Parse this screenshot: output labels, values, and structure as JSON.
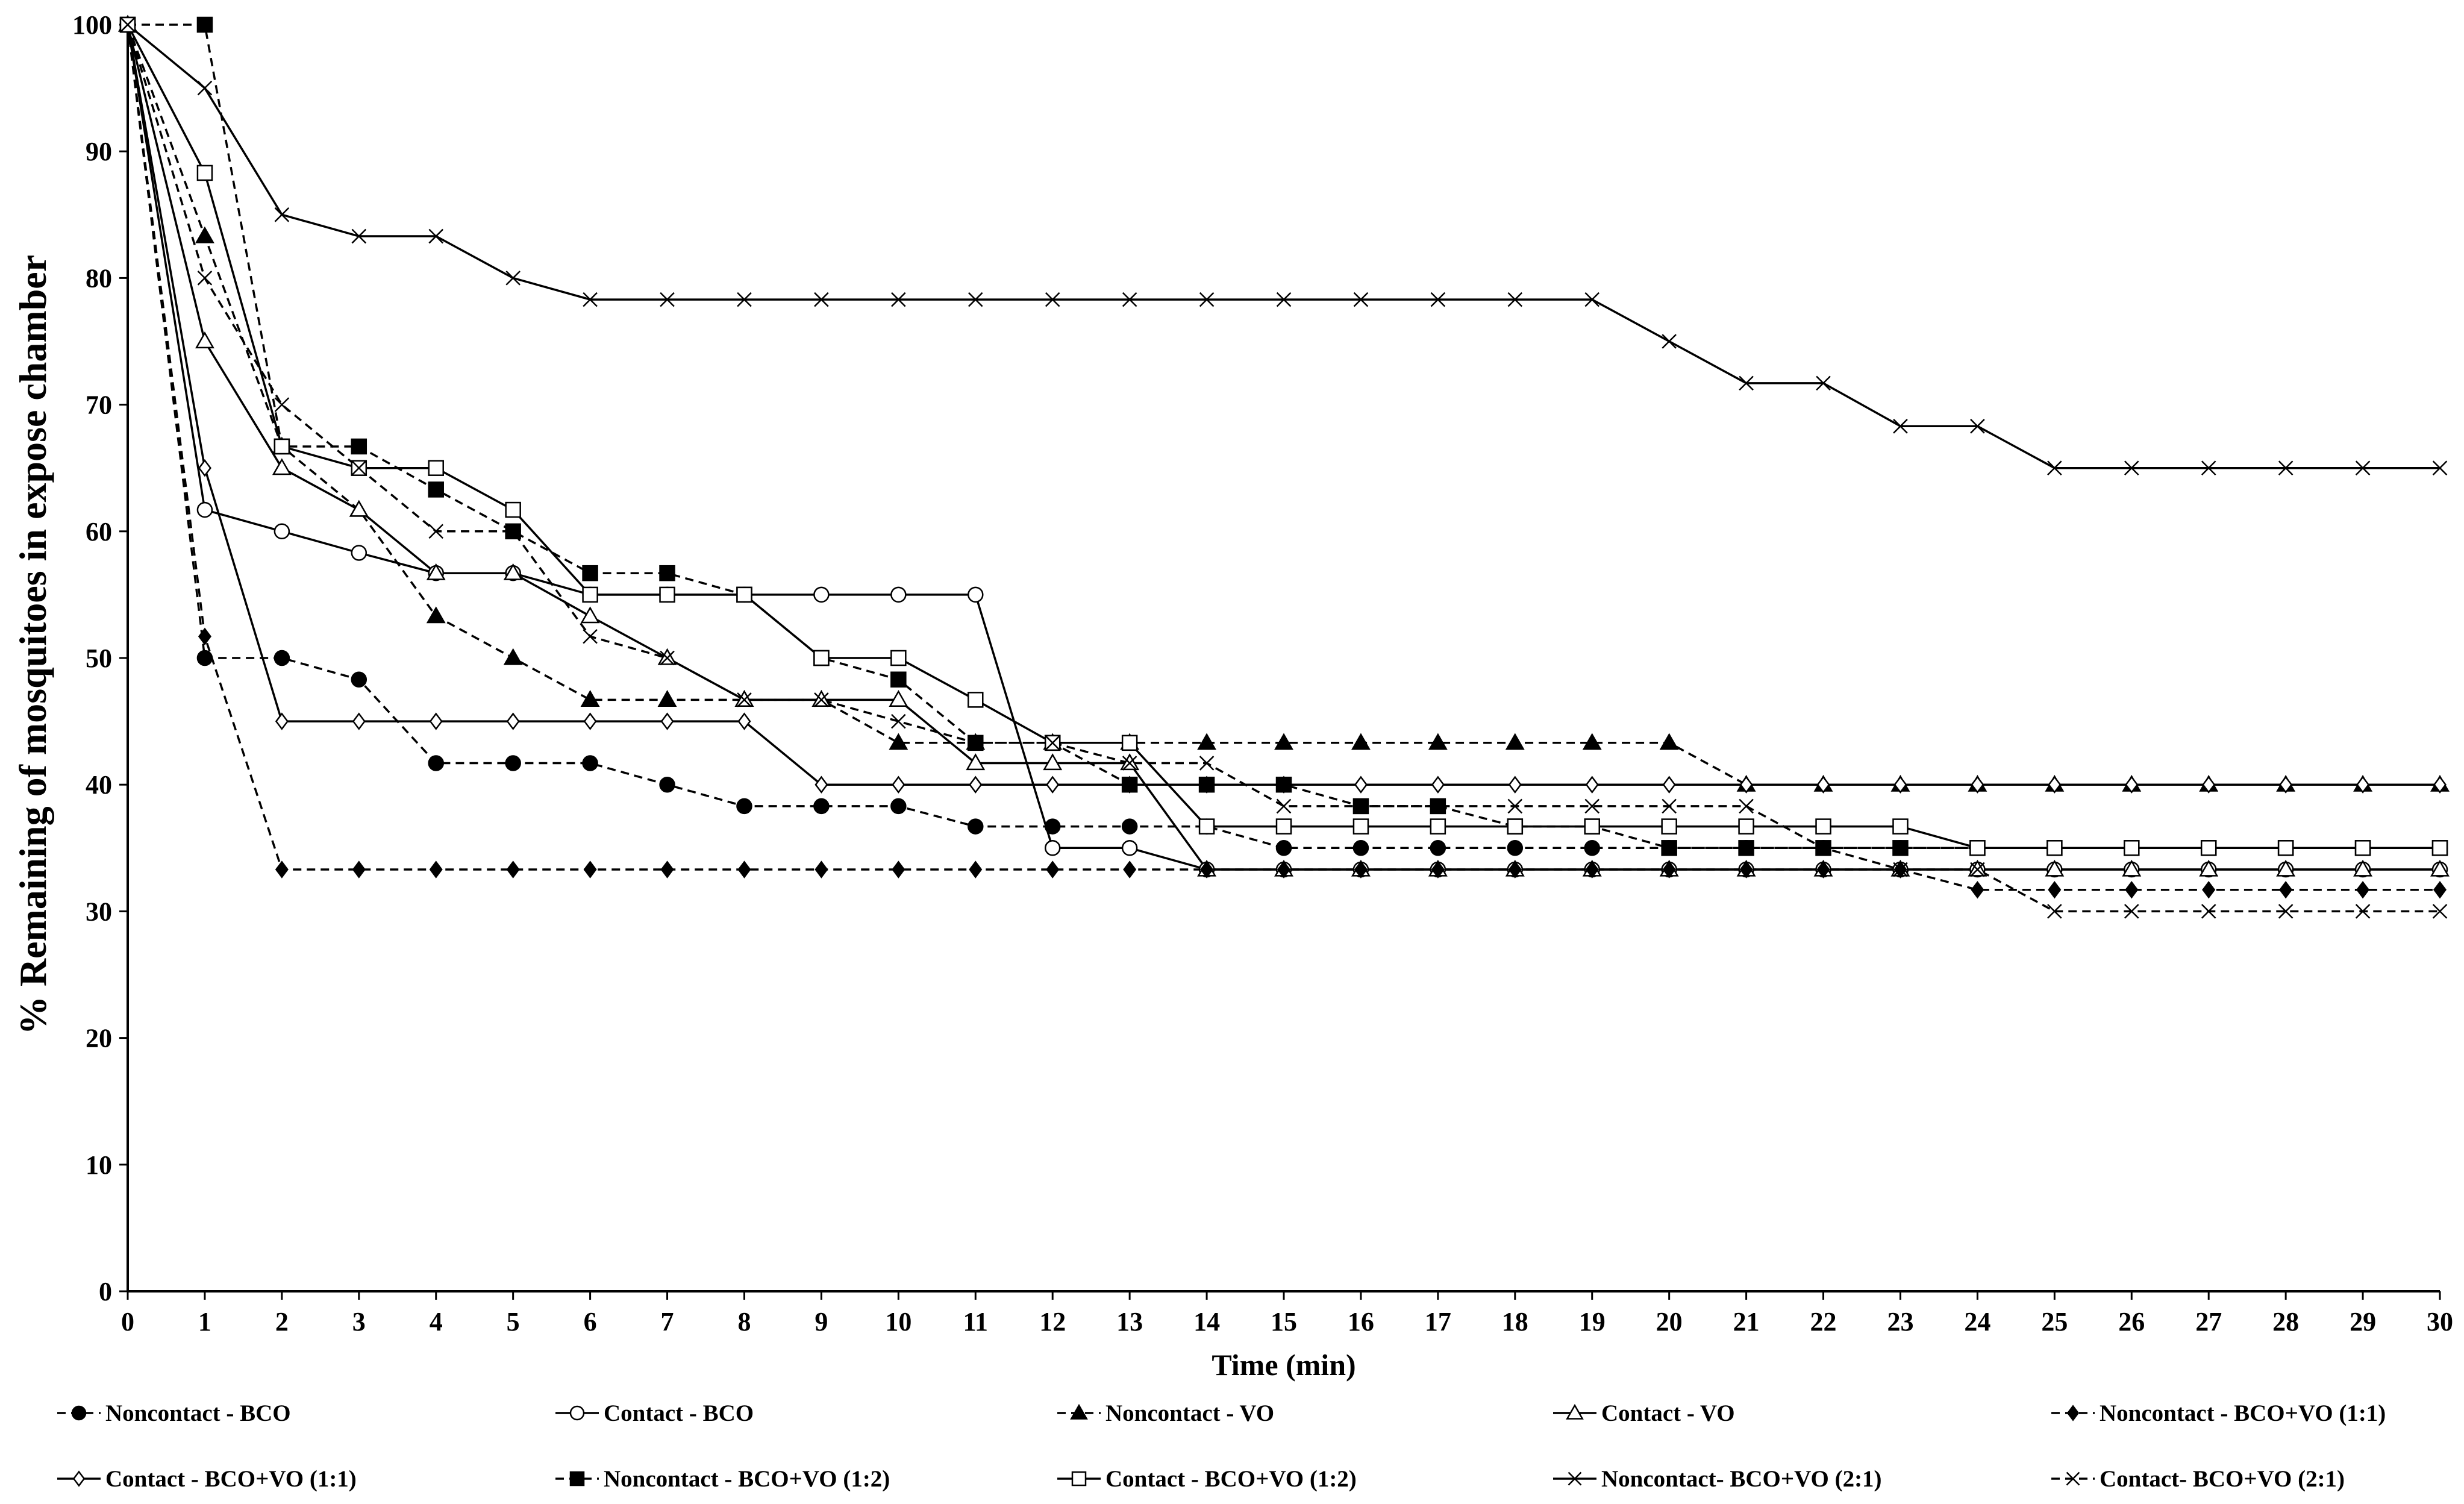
{
  "chart_data": {
    "type": "line",
    "title": "",
    "xlabel": "Time (min)",
    "ylabel": "% Remaining of mosquitoes in expose chamber",
    "xlim": [
      0,
      30
    ],
    "ylim": [
      0,
      100
    ],
    "x_ticks": [
      0,
      1,
      2,
      3,
      4,
      5,
      6,
      7,
      8,
      9,
      10,
      11,
      12,
      13,
      14,
      15,
      16,
      17,
      18,
      19,
      20,
      21,
      22,
      23,
      24,
      25,
      26,
      27,
      28,
      29,
      30
    ],
    "y_ticks": [
      0,
      10,
      20,
      30,
      40,
      50,
      60,
      70,
      80,
      90,
      100
    ],
    "grid": false,
    "legend_position": "bottom",
    "x": [
      0,
      1,
      2,
      3,
      4,
      5,
      6,
      7,
      8,
      9,
      10,
      11,
      12,
      13,
      14,
      15,
      16,
      17,
      18,
      19,
      20,
      21,
      22,
      23,
      24,
      25,
      26,
      27,
      28,
      29,
      30
    ],
    "series": [
      {
        "name": "Noncontact - BCO",
        "marker": "filled-circle",
        "dash": "dashed",
        "values": [
          100,
          50,
          50,
          48.3,
          41.7,
          41.7,
          41.7,
          40,
          38.3,
          38.3,
          38.3,
          36.7,
          36.7,
          36.7,
          36.7,
          35,
          35,
          35,
          35,
          35,
          35,
          35,
          35,
          35,
          35,
          35,
          35,
          35,
          35,
          35,
          35
        ]
      },
      {
        "name": "Contact - BCO",
        "marker": "open-circle",
        "dash": "solid",
        "values": [
          100,
          61.7,
          60,
          58.3,
          56.7,
          56.7,
          55,
          55,
          55,
          55,
          55,
          55,
          35,
          35,
          33.3,
          33.3,
          33.3,
          33.3,
          33.3,
          33.3,
          33.3,
          33.3,
          33.3,
          33.3,
          33.3,
          33.3,
          33.3,
          33.3,
          33.3,
          33.3,
          33.3
        ]
      },
      {
        "name": "Noncontact - VO",
        "marker": "filled-triangle",
        "dash": "dashed",
        "values": [
          100,
          83.3,
          66.7,
          61.7,
          53.3,
          50,
          46.7,
          46.7,
          46.7,
          46.7,
          43.3,
          43.3,
          43.3,
          43.3,
          43.3,
          43.3,
          43.3,
          43.3,
          43.3,
          43.3,
          43.3,
          40,
          40,
          40,
          40,
          40,
          40,
          40,
          40,
          40,
          40
        ]
      },
      {
        "name": "Contact - VO",
        "marker": "open-triangle",
        "dash": "solid",
        "values": [
          100,
          75,
          65,
          61.7,
          56.7,
          56.7,
          53.3,
          50,
          46.7,
          46.7,
          46.7,
          41.7,
          41.7,
          41.7,
          33.3,
          33.3,
          33.3,
          33.3,
          33.3,
          33.3,
          33.3,
          33.3,
          33.3,
          33.3,
          33.3,
          33.3,
          33.3,
          33.3,
          33.3,
          33.3,
          33.3
        ]
      },
      {
        "name": "Noncontact - BCO+VO (1:1)",
        "marker": "filled-diamond",
        "dash": "dashed",
        "values": [
          100,
          51.7,
          33.3,
          33.3,
          33.3,
          33.3,
          33.3,
          33.3,
          33.3,
          33.3,
          33.3,
          33.3,
          33.3,
          33.3,
          33.3,
          33.3,
          33.3,
          33.3,
          33.3,
          33.3,
          33.3,
          33.3,
          33.3,
          33.3,
          31.7,
          31.7,
          31.7,
          31.7,
          31.7,
          31.7,
          31.7
        ]
      },
      {
        "name": "Contact - BCO+VO (1:1)",
        "marker": "open-diamond",
        "dash": "solid",
        "values": [
          100,
          65,
          45,
          45,
          45,
          45,
          45,
          45,
          45,
          40,
          40,
          40,
          40,
          40,
          40,
          40,
          40,
          40,
          40,
          40,
          40,
          40,
          40,
          40,
          40,
          40,
          40,
          40,
          40,
          40,
          40
        ]
      },
      {
        "name": "Noncontact - BCO+VO (1:2)",
        "marker": "filled-square",
        "dash": "dashed",
        "values": [
          100,
          100,
          66.7,
          66.7,
          63.3,
          60,
          56.7,
          56.7,
          55,
          50,
          48.3,
          43.3,
          43.3,
          40,
          40,
          40,
          38.3,
          38.3,
          36.7,
          36.7,
          35,
          35,
          35,
          35,
          35,
          35,
          35,
          35,
          35,
          35,
          35
        ]
      },
      {
        "name": "Contact - BCO+VO (1:2)",
        "marker": "open-square",
        "dash": "solid",
        "values": [
          100,
          88.3,
          66.7,
          65,
          65,
          61.7,
          55,
          55,
          55,
          50,
          50,
          46.7,
          43.3,
          43.3,
          36.7,
          36.7,
          36.7,
          36.7,
          36.7,
          36.7,
          36.7,
          36.7,
          36.7,
          36.7,
          35,
          35,
          35,
          35,
          35,
          35,
          35
        ]
      },
      {
        "name": "Noncontact- BCO+VO (2:1)",
        "marker": "x",
        "dash": "solid",
        "values": [
          100,
          95,
          85,
          83.3,
          83.3,
          80,
          78.3,
          78.3,
          78.3,
          78.3,
          78.3,
          78.3,
          78.3,
          78.3,
          78.3,
          78.3,
          78.3,
          78.3,
          78.3,
          78.3,
          75,
          71.7,
          71.7,
          68.3,
          68.3,
          65,
          65,
          65,
          65,
          65,
          65
        ]
      },
      {
        "name": "Contact- BCO+VO (2:1)",
        "marker": "x",
        "dash": "dashed",
        "values": [
          100,
          80,
          70,
          65,
          60,
          60,
          51.7,
          50,
          46.7,
          46.7,
          45,
          43.3,
          43.3,
          41.7,
          41.7,
          38.3,
          38.3,
          38.3,
          38.3,
          38.3,
          38.3,
          38.3,
          35,
          33.3,
          33.3,
          30,
          30,
          30,
          30,
          30,
          30
        ]
      }
    ]
  }
}
